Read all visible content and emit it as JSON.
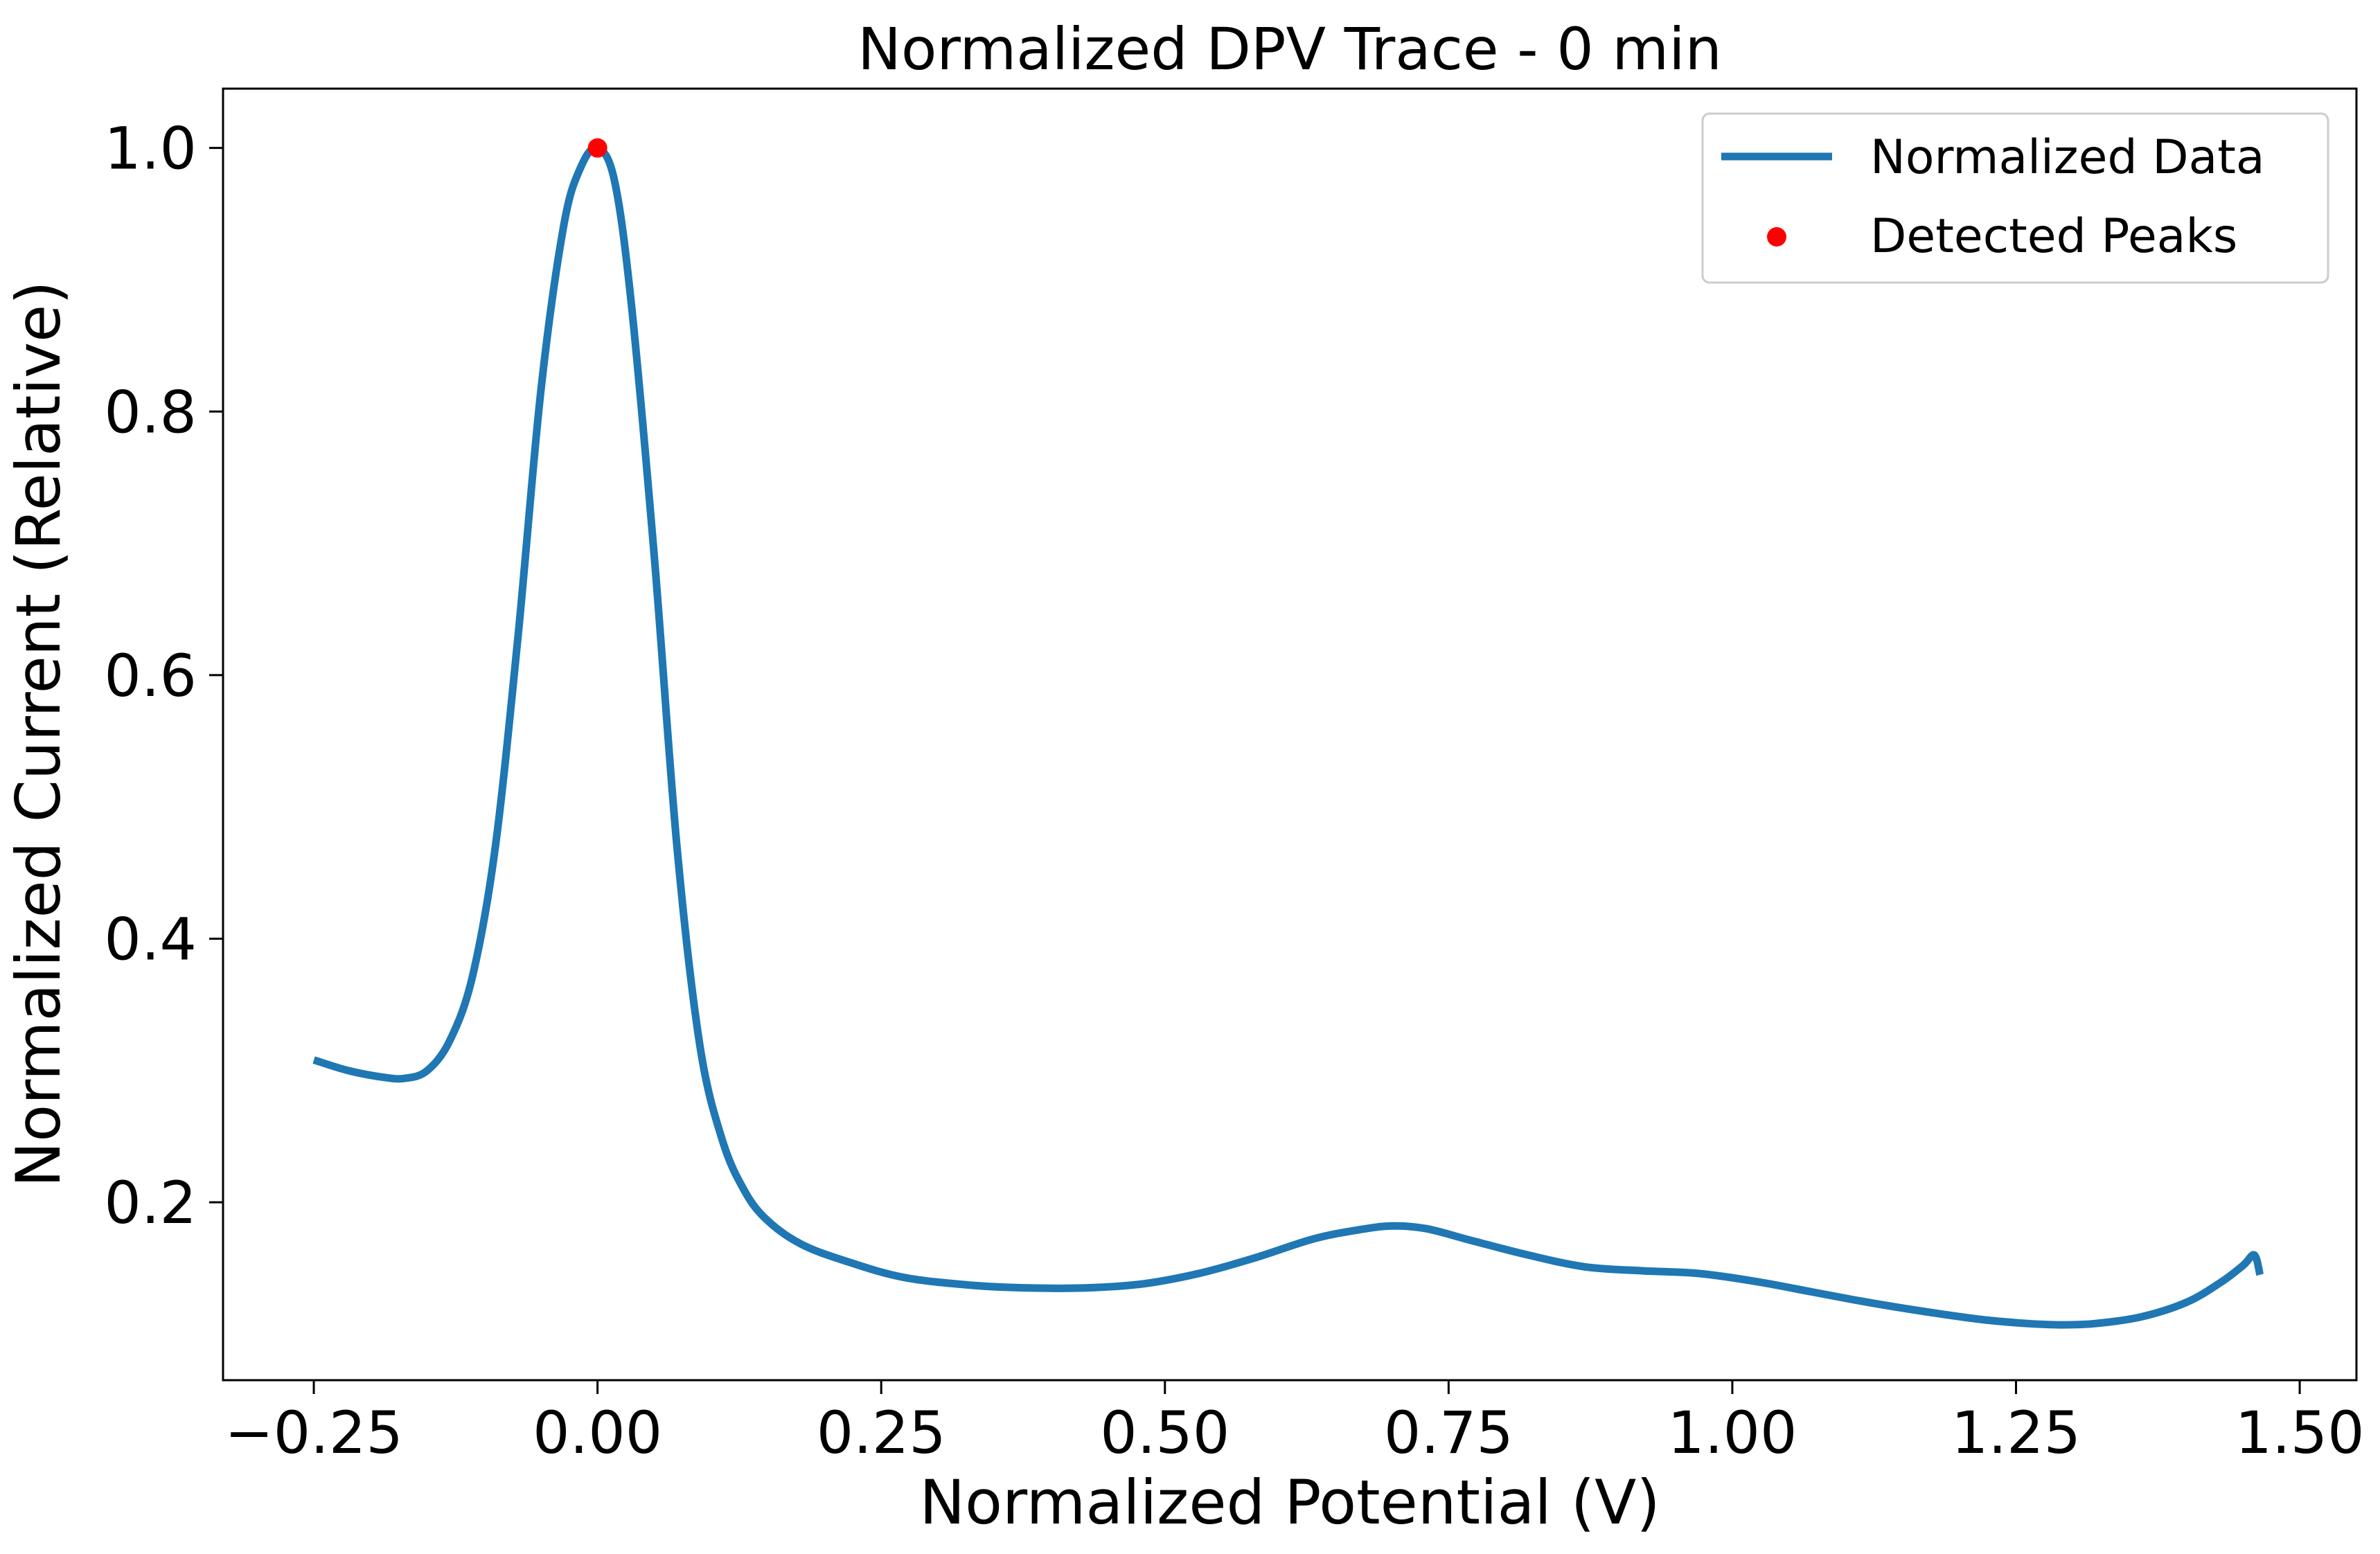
{
  "chart_data": {
    "type": "line",
    "title": "Normalized DPV Trace - 0 min",
    "xlabel": "Normalized Potential (V)",
    "ylabel": "Normalized Current (Relative)",
    "xlim": [
      -0.33,
      1.55
    ],
    "ylim": [
      0.065,
      1.045
    ],
    "xticks": [
      -0.25,
      0.0,
      0.25,
      0.5,
      0.75,
      1.0,
      1.25,
      1.5
    ],
    "xtick_labels": [
      "−0.25",
      "0.00",
      "0.25",
      "0.50",
      "0.75",
      "1.00",
      "1.25",
      "1.50"
    ],
    "yticks": [
      0.2,
      0.4,
      0.6,
      0.8,
      1.0
    ],
    "ytick_labels": [
      "0.2",
      "0.4",
      "0.6",
      "0.8",
      "1.0"
    ],
    "grid": false,
    "legend_position": "top-right",
    "series": [
      {
        "name": "Normalized Data",
        "kind": "line",
        "color": "#1f77b4",
        "x": [
          -0.25,
          -0.22,
          -0.19,
          -0.17,
          -0.15,
          -0.13,
          -0.11,
          -0.09,
          -0.07,
          -0.05,
          -0.03,
          -0.015,
          0.0,
          0.015,
          0.03,
          0.05,
          0.07,
          0.09,
          0.11,
          0.13,
          0.15,
          0.18,
          0.22,
          0.27,
          0.33,
          0.38,
          0.43,
          0.48,
          0.53,
          0.58,
          0.63,
          0.67,
          0.7,
          0.73,
          0.77,
          0.82,
          0.87,
          0.92,
          0.97,
          1.02,
          1.07,
          1.12,
          1.17,
          1.22,
          1.26,
          1.29,
          1.32,
          1.36,
          1.4,
          1.43,
          1.45,
          1.46,
          1.465
        ],
        "y": [
          0.308,
          0.3,
          0.295,
          0.294,
          0.3,
          0.323,
          0.372,
          0.47,
          0.63,
          0.815,
          0.94,
          0.985,
          1.0,
          0.975,
          0.88,
          0.69,
          0.47,
          0.32,
          0.247,
          0.208,
          0.186,
          0.168,
          0.155,
          0.143,
          0.137,
          0.135,
          0.135,
          0.138,
          0.146,
          0.158,
          0.172,
          0.179,
          0.182,
          0.18,
          0.171,
          0.16,
          0.151,
          0.148,
          0.146,
          0.14,
          0.132,
          0.124,
          0.117,
          0.111,
          0.108,
          0.107,
          0.108,
          0.113,
          0.124,
          0.139,
          0.152,
          0.16,
          0.145
        ]
      },
      {
        "name": "Detected Peaks",
        "kind": "scatter",
        "color": "#ff0000",
        "points": [
          {
            "x": 0.0,
            "y": 1.0
          }
        ]
      }
    ]
  }
}
